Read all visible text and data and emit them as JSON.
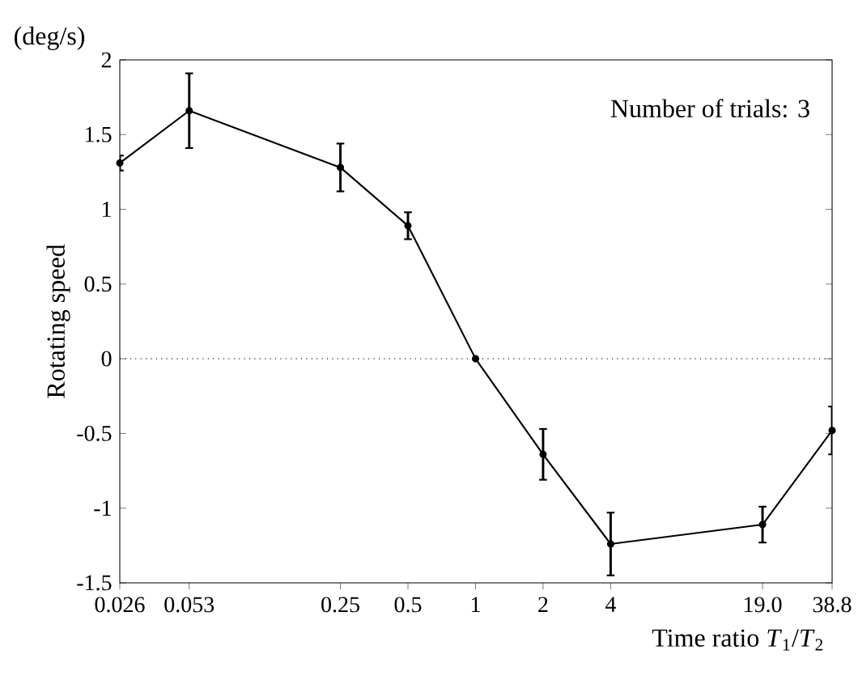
{
  "chart_data": {
    "type": "line",
    "xlabel": "Time ratio *T*$_{1}$/*T*$_{2}$",
    "ylabel": "Rotating speed",
    "annotations": [
      "(deg/s)",
      "Number of trials: 3"
    ],
    "x": [
      0.026,
      0.053,
      0.25,
      0.5,
      1,
      2,
      4,
      19.0,
      38.8
    ],
    "values": [
      1.31,
      1.66,
      1.28,
      0.89,
      0,
      -0.64,
      -1.24,
      -1.11,
      -0.48
    ],
    "errors": [
      0.05,
      0.25,
      0.16,
      0.09,
      null,
      0.17,
      0.21,
      0.12,
      0.16
    ],
    "color": "#000000",
    "marker": "circle",
    "log": "x",
    "xlim": [
      0.026,
      38.8
    ],
    "ylim": [
      -1.5,
      2
    ],
    "xticks": [
      0.026,
      0.053,
      0.25,
      0.5,
      1,
      2,
      4,
      {
        "value": 19.0,
        "label": "19.0"
      },
      38.8
    ],
    "yticks": [
      -1.5,
      -1,
      -0.5,
      0,
      0.5,
      1,
      1.5,
      2
    ],
    "ref_lines": [
      {
        "axis": "y",
        "value": 0,
        "line_style": "dotted"
      }
    ]
  }
}
